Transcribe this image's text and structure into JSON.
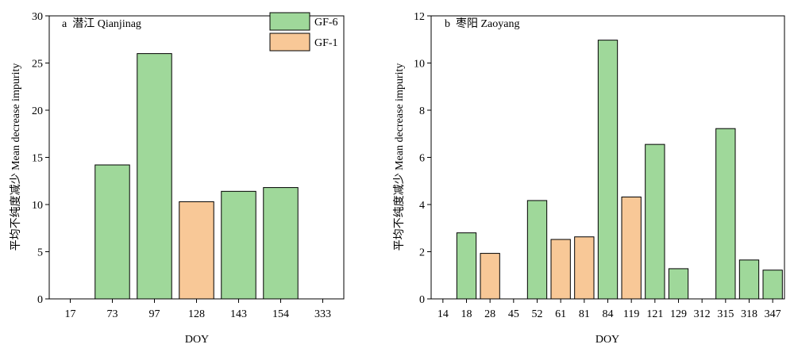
{
  "legend": {
    "entries": [
      {
        "name": "GF-6",
        "color": "#9fd89a"
      },
      {
        "name": "GF-1",
        "color": "#f8c897"
      }
    ]
  },
  "chart_data": [
    {
      "type": "bar",
      "panel_label": "a  潜江 Qianjinag",
      "xlabel": "DOY",
      "ylabel": "平均不纯度减少 Mean decrease impurity",
      "ylim": [
        0,
        30
      ],
      "yticks": [
        0,
        5,
        10,
        15,
        20,
        25,
        30
      ],
      "categories": [
        "17",
        "73",
        "97",
        "128",
        "143",
        "154",
        "333"
      ],
      "values": [
        null,
        14.2,
        26.0,
        10.3,
        11.4,
        11.8,
        null
      ],
      "sources": [
        "",
        "GF-6",
        "GF-6",
        "GF-1",
        "GF-6",
        "GF-6",
        ""
      ],
      "grid": false,
      "legend_position": "top-right"
    },
    {
      "type": "bar",
      "panel_label": "b  枣阳 Zaoyang",
      "xlabel": "DOY",
      "ylabel": "平均不纯度减少 Mean decrease impurity",
      "ylim": [
        0,
        12
      ],
      "yticks": [
        0,
        2,
        4,
        6,
        8,
        10,
        12
      ],
      "categories": [
        "14",
        "18",
        "28",
        "45",
        "52",
        "61",
        "81",
        "84",
        "119",
        "121",
        "129",
        "312",
        "315",
        "318",
        "347"
      ],
      "values": [
        null,
        2.8,
        1.93,
        null,
        4.17,
        2.52,
        2.63,
        10.97,
        4.32,
        6.55,
        1.28,
        null,
        7.22,
        1.65,
        1.22
      ],
      "sources": [
        "",
        "GF-6",
        "GF-1",
        "",
        "GF-6",
        "GF-1",
        "GF-1",
        "GF-6",
        "GF-1",
        "GF-6",
        "GF-6",
        "",
        "GF-6",
        "GF-6",
        "GF-6"
      ],
      "grid": false
    }
  ]
}
